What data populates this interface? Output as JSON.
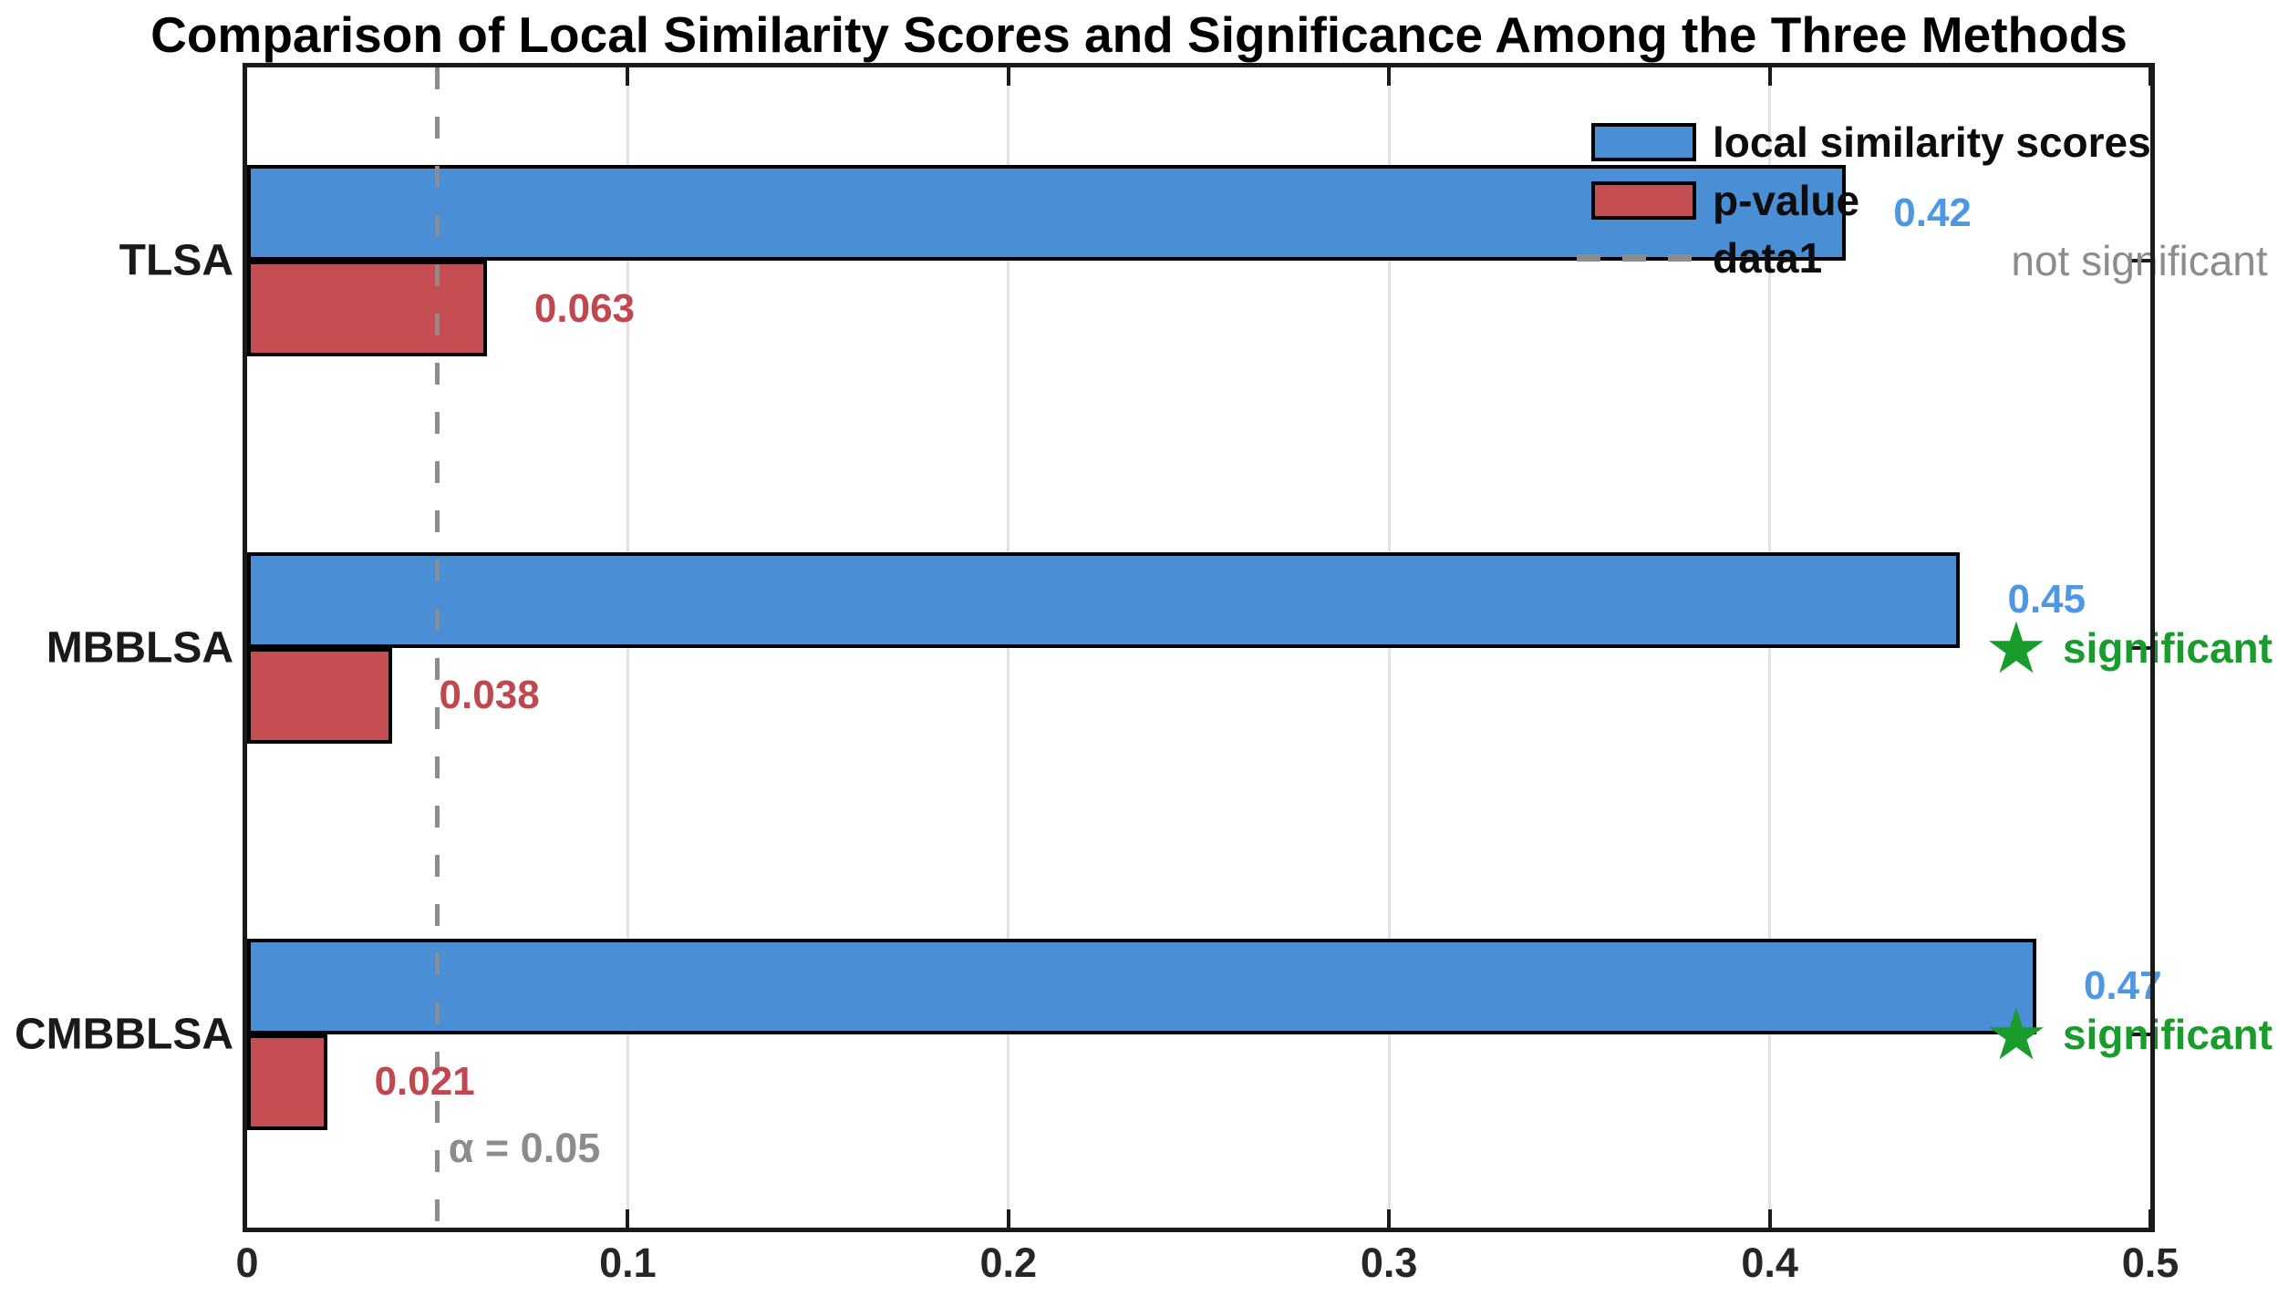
{
  "title": "Comparison of Local Similarity Scores and Significance Among the Three Methods",
  "colors": {
    "bar_blue": "#4a8ed5",
    "bar_red": "#c44e52",
    "bar_edge": "#000000",
    "value_label_blue": "#4e97e3",
    "value_label_red": "#c0474e",
    "significant_green": "#189c2c",
    "threshold_gray": "#8c8c8c",
    "not_significant_gray": "#8c8c8c",
    "grid_gray": "#e2e2e2",
    "axis_dark": "#1a1a1a"
  },
  "legend": {
    "position": "top-right",
    "items": [
      {
        "label": "local similarity scores",
        "swatch": "blue-bar"
      },
      {
        "label": "p-value",
        "swatch": "red-bar"
      },
      {
        "label": "data1",
        "swatch": "dashed-line"
      }
    ]
  },
  "chart_data": {
    "type": "bar",
    "orientation": "horizontal",
    "title": "Comparison of Local Similarity Scores and Significance Among the Three Methods",
    "categories": [
      "TLSA",
      "MBBLSA",
      "CMBBLSA"
    ],
    "series": [
      {
        "name": "local similarity scores",
        "color": "#4a8ed5",
        "label_color": "#4e97e3",
        "values": [
          0.42,
          0.45,
          0.47
        ],
        "value_labels": [
          "0.42",
          "0.45",
          "0.47"
        ]
      },
      {
        "name": "p-value",
        "color": "#c44e52",
        "label_color": "#c0474e",
        "values": [
          0.063,
          0.038,
          0.021
        ],
        "value_labels": [
          "0.063",
          "0.038",
          "0.021"
        ]
      }
    ],
    "threshold_line": {
      "value": 0.05,
      "label": "α = 0.05",
      "legend_label": "data1",
      "color": "#8c8c8c",
      "style": "dashed"
    },
    "annotations": [
      {
        "category": "TLSA",
        "text": "not significant",
        "significant": false,
        "color": "#8c8c8c"
      },
      {
        "category": "MBBLSA",
        "text": "significant",
        "significant": true,
        "star": "★",
        "color": "#189c2c"
      },
      {
        "category": "CMBBLSA",
        "text": "significant",
        "significant": true,
        "star": "★",
        "color": "#189c2c"
      }
    ],
    "xlim": [
      0,
      0.5
    ],
    "xticks": [
      0,
      0.1,
      0.2,
      0.3,
      0.4,
      0.5
    ],
    "xtick_labels": [
      "0",
      "0.1",
      "0.2",
      "0.3",
      "0.4",
      "0.5"
    ],
    "grid": true,
    "legend_position": "top-right"
  }
}
